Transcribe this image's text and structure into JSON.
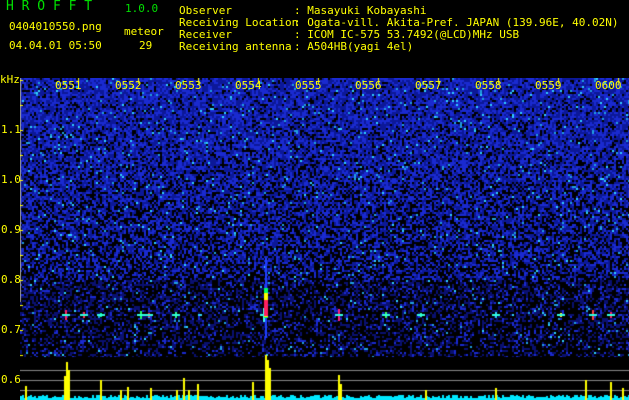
{
  "app": {
    "name": "H R O F F T",
    "version": "1.0.0"
  },
  "file": {
    "name": "0404010550.png",
    "datetime": "04.04.01 05:50"
  },
  "meteor": {
    "label": "meteor",
    "count": "29"
  },
  "info": [
    {
      "label": "Observer",
      "value": ": Masayuki Kobayashi"
    },
    {
      "label": "Receiving Location",
      "value": ": Ogata-vill. Akita-Pref. JAPAN (139.96E, 40.02N)"
    },
    {
      "label": "Receiver",
      "value": ": ICOM IC-575 53.7492(@LCD)MHz USB"
    },
    {
      "label": "Receiving antenna",
      "value": ": A504HB(yagi 4el)"
    }
  ],
  "colors": {
    "text": "#ffff00",
    "title": "#00e000",
    "noise": "#1a2ad0",
    "level": "#00ffff",
    "peak": "#ffff00"
  },
  "chart_data": {
    "type": "heatmap",
    "ylabel": "kHz",
    "ylim": [
      0.56,
      1.16
    ],
    "yticks": [
      "1.1",
      "1.0",
      "0.9",
      "0.8",
      "0.7",
      "0.6"
    ],
    "xticks": [
      "0551",
      "0552",
      "0553",
      "0554",
      "0555",
      "0556",
      "0557",
      "0558",
      "0559",
      "0600"
    ],
    "xlim": [
      "05:50",
      "06:00"
    ],
    "echo_frequency_khz": 0.73,
    "strongest_echo_time": "05:54.1"
  }
}
